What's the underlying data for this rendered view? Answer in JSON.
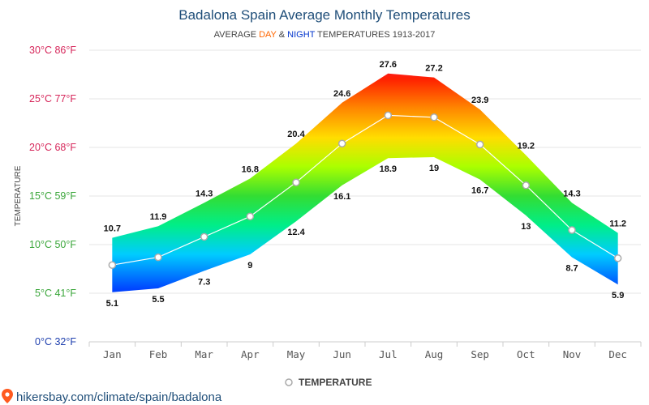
{
  "header": {
    "title": "Badalona Spain Average Monthly Temperatures",
    "subtitle_prefix": "AVERAGE ",
    "subtitle_day": "DAY",
    "subtitle_amp": " & ",
    "subtitle_night": "NIGHT",
    "subtitle_suffix": " TEMPERATURES 1913-2017"
  },
  "colors": {
    "title": "#1f4e79",
    "day": "#ff6600",
    "night": "#0033cc",
    "line": "#ffffff",
    "marker_stroke": "#aaaaaa"
  },
  "chart_data": {
    "type": "area",
    "title": "Badalona Spain Average Monthly Temperatures",
    "subtitle": "AVERAGE DAY & NIGHT TEMPERATURES 1913-2017",
    "ylabel": "TEMPERATURE",
    "ylim": [
      0,
      30
    ],
    "yticks": [
      {
        "value": 0,
        "label": "0°C 32°F",
        "color": "#1e3fae"
      },
      {
        "value": 5,
        "label": "5°C 41°F",
        "color": "#3aa63a"
      },
      {
        "value": 10,
        "label": "10°C 50°F",
        "color": "#3aa63a"
      },
      {
        "value": 15,
        "label": "15°C 59°F",
        "color": "#3aa63a"
      },
      {
        "value": 20,
        "label": "20°C 68°F",
        "color": "#d6265a"
      },
      {
        "value": 25,
        "label": "25°C 77°F",
        "color": "#d6265a"
      },
      {
        "value": 30,
        "label": "30°C 86°F",
        "color": "#d6265a"
      }
    ],
    "categories": [
      "Jan",
      "Feb",
      "Mar",
      "Apr",
      "May",
      "Jun",
      "Jul",
      "Aug",
      "Sep",
      "Oct",
      "Nov",
      "Dec"
    ],
    "day": [
      10.7,
      11.9,
      14.3,
      16.8,
      20.4,
      24.6,
      27.6,
      27.2,
      23.9,
      19.2,
      14.3,
      11.2
    ],
    "night": [
      5.1,
      5.5,
      7.3,
      9,
      12.4,
      16.1,
      18.9,
      19,
      16.7,
      13,
      8.7,
      5.9
    ],
    "average": [
      7.9,
      8.7,
      10.8,
      12.9,
      16.4,
      20.4,
      23.3,
      23.1,
      20.3,
      16.1,
      11.5,
      8.6
    ],
    "series": [
      {
        "name": "TEMPERATURE",
        "values": [
          7.9,
          8.7,
          10.8,
          12.9,
          16.4,
          20.4,
          23.3,
          23.1,
          20.3,
          16.1,
          11.5,
          8.6
        ]
      }
    ],
    "grid": true,
    "legend": "bottom-center"
  },
  "source": {
    "text": "hikersbay.com/climate/spain/badalona"
  }
}
